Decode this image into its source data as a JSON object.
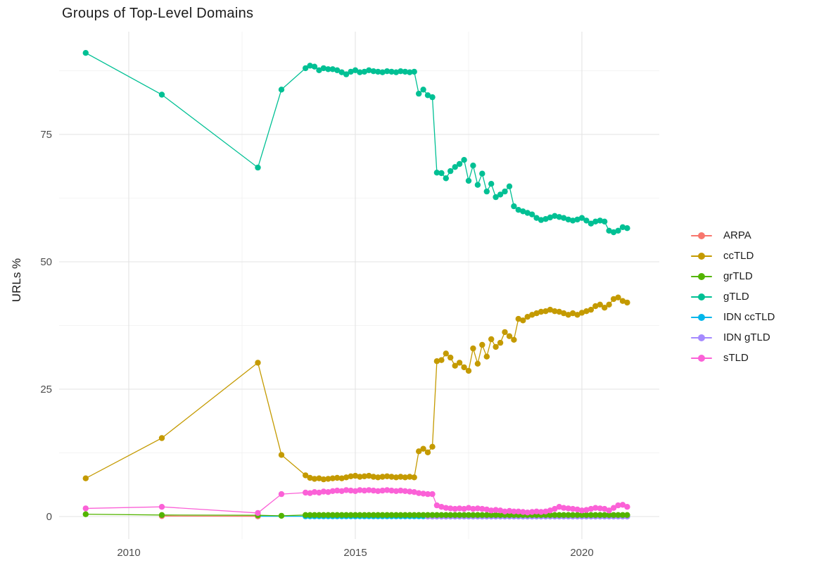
{
  "title": "Groups of Top-Level Domains",
  "axes": {
    "y_label": "URLs %",
    "y_tick_labels": [
      "0",
      "25",
      "50",
      "75"
    ],
    "x_tick_labels": [
      "2010",
      "2015",
      "2020"
    ]
  },
  "chart_data": {
    "type": "line",
    "title": "Groups of Top-Level Domains",
    "xlabel": "",
    "ylabel": "URLs %",
    "xlim": [
      2008.4,
      2021.7
    ],
    "ylim": [
      -4.5,
      95.5
    ],
    "x_ticks": [
      2010,
      2015,
      2020
    ],
    "x_minor_ticks": [
      2012.5,
      2017.5
    ],
    "y_ticks": [
      0,
      25,
      50,
      75
    ],
    "y_minor_ticks": [
      12.5,
      37.5,
      62.5,
      87.5
    ],
    "grid": true,
    "legend_position": "right",
    "series": [
      {
        "name": "ARPA",
        "color": "#F8766D",
        "points": [
          [
            2010.73,
            0.1
          ],
          [
            2012.85,
            0.05
          ]
        ]
      },
      {
        "name": "ccTLD",
        "color": "#C49A00",
        "points": [
          [
            2009.05,
            7.5
          ],
          [
            2010.73,
            15.4
          ],
          [
            2012.85,
            30.2
          ],
          [
            2013.37,
            12.1
          ]
        ],
        "dense": {
          "x0": 2013.9,
          "dx": 0.1,
          "y": [
            8.1,
            7.6,
            7.4,
            7.5,
            7.3,
            7.4,
            7.5,
            7.6,
            7.5,
            7.7,
            7.9,
            8.0,
            7.8,
            7.9,
            8.0,
            7.8,
            7.7,
            7.8,
            7.9,
            7.8,
            7.7,
            7.8,
            7.7,
            7.8,
            7.7,
            12.8,
            13.3,
            12.6,
            13.7,
            30.5,
            30.7,
            32.0,
            31.2,
            29.6,
            30.2,
            29.3,
            28.6,
            33.0,
            30.0,
            33.7,
            31.4,
            34.8,
            33.3,
            34.1,
            36.2,
            35.4,
            34.7,
            38.8,
            38.5,
            39.2,
            39.6,
            39.9,
            40.2,
            40.3,
            40.6,
            40.3,
            40.2,
            39.9,
            39.6,
            39.9,
            39.6,
            40.0,
            40.3,
            40.6,
            41.3,
            41.6,
            41.0,
            41.6,
            42.7,
            43.0,
            42.3,
            42.0
          ]
        }
      },
      {
        "name": "grTLD",
        "color": "#53B400",
        "points": [
          [
            2009.05,
            0.45
          ],
          [
            2010.73,
            0.3
          ],
          [
            2012.85,
            0.25
          ],
          [
            2013.37,
            0.15
          ]
        ],
        "runs": [
          {
            "from": 2013.9,
            "to": 2021.0,
            "step": 0.1,
            "y": 0.3
          }
        ]
      },
      {
        "name": "gTLD",
        "color": "#00C094",
        "points": [
          [
            2009.05,
            91.0
          ],
          [
            2010.73,
            82.8
          ],
          [
            2012.85,
            68.5
          ],
          [
            2013.37,
            83.8
          ]
        ],
        "dense": {
          "x0": 2013.9,
          "dx": 0.1,
          "y": [
            88.0,
            88.5,
            88.3,
            87.6,
            88.0,
            87.8,
            87.8,
            87.6,
            87.2,
            86.8,
            87.3,
            87.6,
            87.2,
            87.3,
            87.6,
            87.4,
            87.3,
            87.2,
            87.4,
            87.3,
            87.2,
            87.4,
            87.3,
            87.2,
            87.3,
            83.0,
            83.8,
            82.7,
            82.3,
            67.5,
            67.4,
            66.4,
            67.8,
            68.6,
            69.2,
            70.0,
            65.9,
            68.9,
            65.1,
            67.3,
            63.8,
            65.3,
            62.7,
            63.2,
            63.8,
            64.8,
            60.9,
            60.2,
            59.9,
            59.6,
            59.3,
            58.6,
            58.2,
            58.4,
            58.7,
            59.0,
            58.8,
            58.6,
            58.3,
            58.1,
            58.3,
            58.6,
            58.1,
            57.5,
            57.9,
            58.1,
            57.9,
            56.1,
            55.8,
            56.1,
            56.8,
            56.6
          ]
        }
      },
      {
        "name": "IDN ccTLD",
        "color": "#00B6EB",
        "points": [
          [
            2012.85,
            0.05
          ]
        ],
        "runs": [
          {
            "from": 2013.9,
            "to": 2021.0,
            "step": 0.1,
            "y": 0.05
          }
        ]
      },
      {
        "name": "IDN gTLD",
        "color": "#A58AFF",
        "points": [],
        "runs": [
          {
            "from": 2016.6,
            "to": 2021.0,
            "step": 0.1,
            "y": 0.02
          }
        ]
      },
      {
        "name": "sTLD",
        "color": "#FB61D7",
        "points": [
          [
            2009.05,
            1.6
          ],
          [
            2010.73,
            1.9
          ],
          [
            2012.85,
            0.7
          ],
          [
            2013.37,
            4.4
          ]
        ],
        "dense": {
          "x0": 2013.9,
          "dx": 0.1,
          "y": [
            4.7,
            4.6,
            4.8,
            4.7,
            4.9,
            4.8,
            5.0,
            5.1,
            5.0,
            5.2,
            5.1,
            5.0,
            5.2,
            5.1,
            5.2,
            5.1,
            5.0,
            5.1,
            5.2,
            5.1,
            5.0,
            5.1,
            5.0,
            4.9,
            4.8,
            4.6,
            4.5,
            4.4,
            4.4,
            2.2,
            1.9,
            1.7,
            1.6,
            1.5,
            1.6,
            1.5,
            1.7,
            1.5,
            1.6,
            1.5,
            1.4,
            1.2,
            1.3,
            1.2,
            1.0,
            1.1,
            1.0,
            1.0,
            0.9,
            0.8,
            0.9,
            1.0,
            0.9,
            1.0,
            1.2,
            1.5,
            1.9,
            1.7,
            1.6,
            1.5,
            1.4,
            1.2,
            1.3,
            1.5,
            1.7,
            1.6,
            1.5,
            1.2,
            1.7,
            2.2,
            2.3,
            1.9
          ]
        }
      }
    ],
    "colors": {
      "grid_major": "#e3e3e3",
      "grid_minor": "#f0f0f0",
      "tick_label": "#4d4d4d",
      "text": "#1c1c1c"
    }
  }
}
